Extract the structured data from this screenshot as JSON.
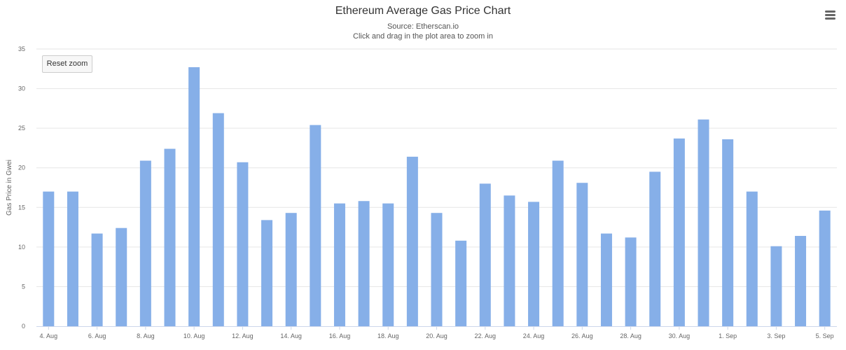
{
  "chart_data": {
    "type": "bar",
    "title": "Ethereum Average Gas Price Chart",
    "subtitle": "Source: Etherscan.io",
    "caption": "Click and drag in the plot area to zoom in",
    "xlabel": "",
    "ylabel": "Gas Price in Gwei",
    "ylim": [
      0,
      35
    ],
    "yticks": [
      0,
      5,
      10,
      15,
      20,
      25,
      30,
      35
    ],
    "grid": true,
    "legend": "none",
    "color": "#86afe8",
    "categories": [
      "4. Aug",
      "5. Aug",
      "6. Aug",
      "7. Aug",
      "8. Aug",
      "9. Aug",
      "10. Aug",
      "11. Aug",
      "12. Aug",
      "13. Aug",
      "14. Aug",
      "15. Aug",
      "16. Aug",
      "17. Aug",
      "18. Aug",
      "19. Aug",
      "20. Aug",
      "21. Aug",
      "22. Aug",
      "23. Aug",
      "24. Aug",
      "25. Aug",
      "26. Aug",
      "27. Aug",
      "28. Aug",
      "29. Aug",
      "30. Aug",
      "31. Aug",
      "1. Sep",
      "2. Sep",
      "3. Sep",
      "4. Sep",
      "5. Sep"
    ],
    "xtick_labels": [
      "4. Aug",
      "6. Aug",
      "8. Aug",
      "10. Aug",
      "12. Aug",
      "14. Aug",
      "16. Aug",
      "18. Aug",
      "20. Aug",
      "22. Aug",
      "24. Aug",
      "26. Aug",
      "28. Aug",
      "30. Aug",
      "1. Sep",
      "3. Sep",
      "5. Sep"
    ],
    "values": [
      17.0,
      17.0,
      11.7,
      12.4,
      20.9,
      22.4,
      32.7,
      26.9,
      20.7,
      13.4,
      14.3,
      25.4,
      15.5,
      15.8,
      15.5,
      21.4,
      14.3,
      10.8,
      18.0,
      16.5,
      15.7,
      20.9,
      18.1,
      11.7,
      11.2,
      19.5,
      23.7,
      26.1,
      23.6,
      17.0,
      10.1,
      11.4,
      14.6
    ]
  },
  "ui": {
    "reset_zoom_label": "Reset zoom",
    "menu_icon": "hamburger-menu-icon"
  }
}
